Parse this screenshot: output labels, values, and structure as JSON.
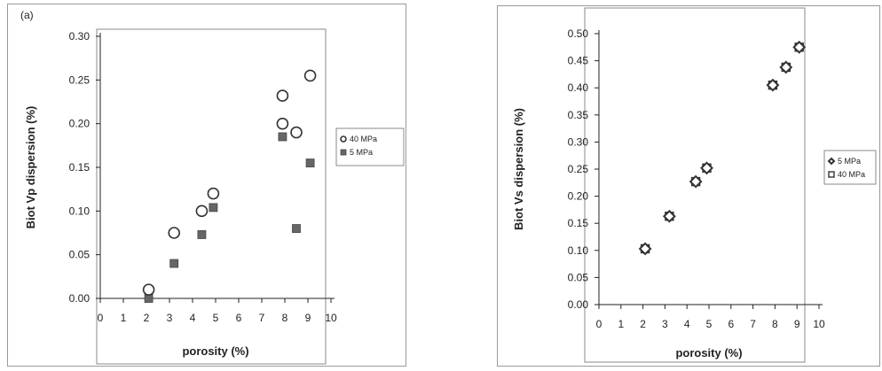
{
  "chart_data": [
    {
      "type": "scatter",
      "panel_label": "(a)",
      "xlabel": "porosity (%)",
      "ylabel": "Biot Vp dispersion (%)",
      "xlim": [
        0,
        10
      ],
      "ylim": [
        0,
        0.3
      ],
      "xticks": [
        "0",
        "1",
        "2",
        "3",
        "4",
        "5",
        "6",
        "7",
        "8",
        "9",
        "10"
      ],
      "yticks": [
        "0.00",
        "0.05",
        "0.10",
        "0.15",
        "0.20",
        "0.25",
        "0.30"
      ],
      "grid": false,
      "legend_position": "right",
      "series": [
        {
          "name": "40 MPa",
          "marker": "open-circle",
          "color": "#333333",
          "points": [
            [
              2.1,
              0.01
            ],
            [
              3.2,
              0.075
            ],
            [
              4.4,
              0.1
            ],
            [
              4.9,
              0.12
            ],
            [
              7.9,
              0.232
            ],
            [
              7.9,
              0.2
            ],
            [
              8.5,
              0.19
            ],
            [
              9.1,
              0.255
            ]
          ]
        },
        {
          "name": "5 MPa",
          "marker": "filled-square",
          "color": "#666666",
          "points": [
            [
              2.1,
              0.0
            ],
            [
              3.2,
              0.04
            ],
            [
              4.4,
              0.073
            ],
            [
              4.9,
              0.104
            ],
            [
              7.9,
              0.185
            ],
            [
              7.9,
              0.2
            ],
            [
              8.5,
              0.08
            ],
            [
              9.1,
              0.155
            ]
          ]
        }
      ]
    },
    {
      "type": "scatter",
      "panel_label": "",
      "xlabel": "porosity (%)",
      "ylabel": "Biot Vs dispersion (%)",
      "xlim": [
        0,
        10
      ],
      "ylim": [
        0,
        0.5
      ],
      "xticks": [
        "0",
        "1",
        "2",
        "3",
        "4",
        "5",
        "6",
        "7",
        "8",
        "9",
        "10"
      ],
      "yticks": [
        "0.00",
        "0.05",
        "0.10",
        "0.15",
        "0.20",
        "0.25",
        "0.30",
        "0.35",
        "0.40",
        "0.45",
        "0.50"
      ],
      "grid": false,
      "legend_position": "right",
      "series": [
        {
          "name": "5 MPa",
          "marker": "open-diamond",
          "color": "#333333",
          "points": [
            [
              2.1,
              0.103
            ],
            [
              3.2,
              0.163
            ],
            [
              4.4,
              0.227
            ],
            [
              4.9,
              0.252
            ],
            [
              7.9,
              0.405
            ],
            [
              8.5,
              0.438
            ],
            [
              9.1,
              0.475
            ]
          ]
        },
        {
          "name": "40 MPa",
          "marker": "open-square",
          "color": "#333333",
          "points": [
            [
              2.1,
              0.103
            ],
            [
              3.2,
              0.163
            ],
            [
              4.4,
              0.227
            ],
            [
              4.9,
              0.252
            ],
            [
              7.9,
              0.405
            ],
            [
              8.5,
              0.438
            ],
            [
              9.1,
              0.475
            ]
          ]
        }
      ]
    }
  ]
}
